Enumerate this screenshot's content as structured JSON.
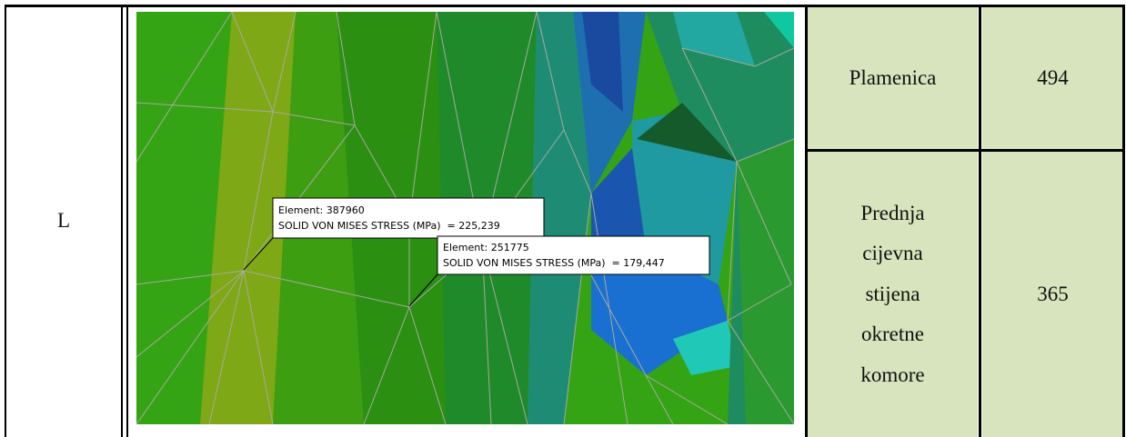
{
  "table": {
    "rows": [
      [
        "L",
        "Plamenica",
        "494"
      ],
      [
        "Prednja cijevna stijena okretne komore",
        "365"
      ]
    ]
  },
  "figure": {
    "callouts": [
      {
        "element": "Element: 387960",
        "stress": "SOLID VON MISES STRESS (MPa)  = 225,239"
      },
      {
        "element": "Element: 251775",
        "stress": "SOLID VON MISES STRESS (MPa)  = 179,447"
      }
    ]
  }
}
